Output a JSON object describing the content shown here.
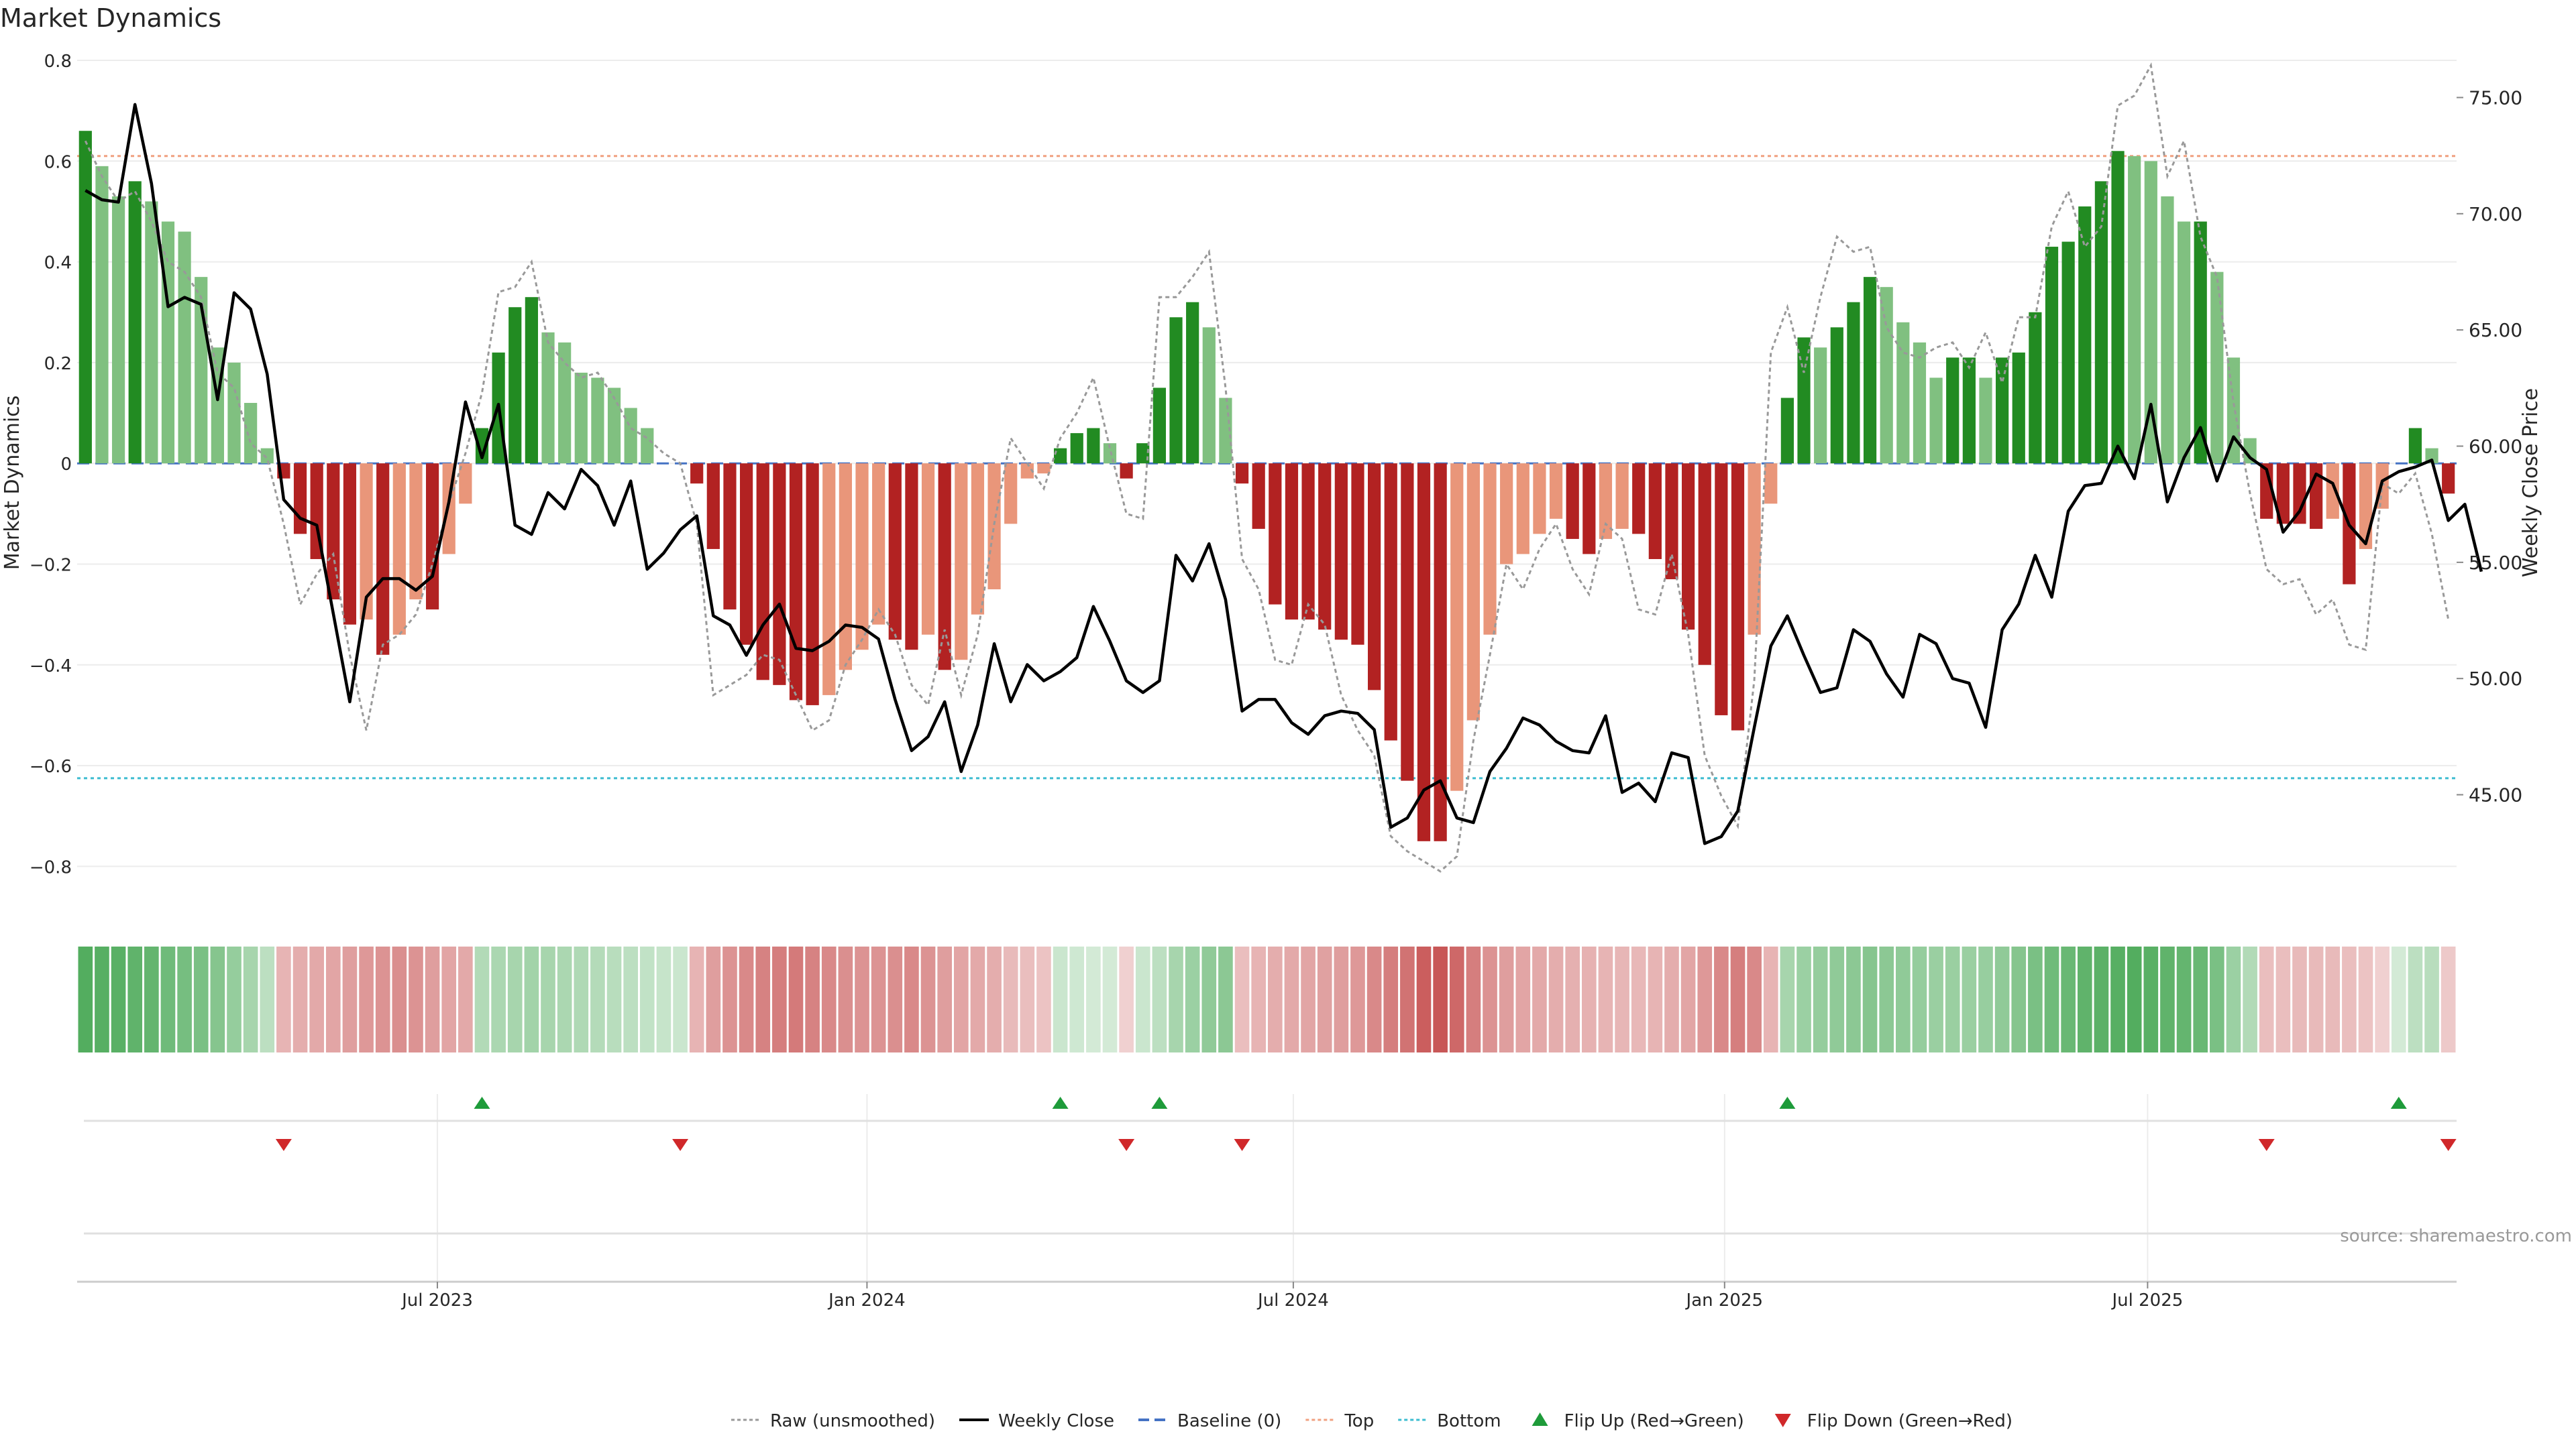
{
  "chart_data": {
    "type": "bar",
    "title": "Market Dynamics",
    "ylabel": "Market Dynamics",
    "y2label": "Weekly Close Price",
    "ylim": [
      -0.87,
      0.8
    ],
    "y2lim": [
      40.4,
      76.6
    ],
    "yticks": [
      "0.8",
      "0.6",
      "0.4",
      "0.2",
      "0",
      "−0.2",
      "−0.4",
      "−0.6",
      "−0.8"
    ],
    "y2ticks": [
      "75.00",
      "70.00",
      "65.00",
      "60.00",
      "55.00",
      "50.00",
      "45.00"
    ],
    "top_level": 0.61,
    "bottom_level": -0.625,
    "baseline": 0,
    "xticks": [
      {
        "week": 21.3,
        "label": "Jul 2023"
      },
      {
        "week": 47.3,
        "label": "Jan 2024"
      },
      {
        "week": 73.1,
        "label": "Jul 2024"
      },
      {
        "week": 99.2,
        "label": "Jan 2025"
      },
      {
        "week": 124.8,
        "label": "Jul 2025"
      }
    ],
    "dynamics": [
      0.66,
      0.59,
      0.53,
      0.56,
      0.52,
      0.48,
      0.46,
      0.37,
      0.23,
      0.2,
      0.12,
      0.03,
      -0.03,
      -0.14,
      -0.19,
      -0.27,
      -0.32,
      -0.31,
      -0.38,
      -0.34,
      -0.27,
      -0.29,
      -0.18,
      -0.08,
      0.07,
      0.22,
      0.31,
      0.33,
      0.26,
      0.24,
      0.18,
      0.17,
      0.15,
      0.11,
      0.07,
      0.0,
      0.0,
      -0.04,
      -0.17,
      -0.29,
      -0.36,
      -0.43,
      -0.44,
      -0.47,
      -0.48,
      -0.46,
      -0.41,
      -0.37,
      -0.32,
      -0.35,
      -0.37,
      -0.34,
      -0.41,
      -0.39,
      -0.3,
      -0.25,
      -0.12,
      -0.03,
      -0.02,
      0.03,
      0.06,
      0.07,
      0.04,
      -0.03,
      0.04,
      0.15,
      0.29,
      0.32,
      0.27,
      0.13,
      -0.04,
      -0.13,
      -0.28,
      -0.31,
      -0.31,
      -0.33,
      -0.35,
      -0.36,
      -0.45,
      -0.55,
      -0.63,
      -0.75,
      -0.75,
      -0.65,
      -0.51,
      -0.34,
      -0.2,
      -0.18,
      -0.14,
      -0.11,
      -0.15,
      -0.18,
      -0.15,
      -0.13,
      -0.14,
      -0.19,
      -0.23,
      -0.33,
      -0.4,
      -0.5,
      -0.53,
      -0.34,
      -0.08,
      0.13,
      0.25,
      0.23,
      0.27,
      0.32,
      0.37,
      0.35,
      0.28,
      0.24,
      0.17,
      0.21,
      0.21,
      0.17,
      0.21,
      0.22,
      0.3,
      0.43,
      0.44,
      0.51,
      0.56,
      0.62,
      0.61,
      0.6,
      0.53,
      0.48,
      0.48,
      0.38,
      0.21,
      0.05,
      -0.11,
      -0.12,
      -0.12,
      -0.13,
      -0.11,
      -0.24,
      -0.17,
      -0.09,
      0.0,
      0.07,
      0.03,
      -0.06
    ],
    "raw": [
      0.64,
      0.57,
      0.52,
      0.54,
      0.48,
      0.4,
      0.38,
      0.33,
      0.18,
      0.15,
      0.04,
      0.01,
      -0.12,
      -0.28,
      -0.22,
      -0.18,
      -0.38,
      -0.53,
      -0.36,
      -0.34,
      -0.3,
      -0.2,
      -0.08,
      0.02,
      0.14,
      0.34,
      0.35,
      0.4,
      0.24,
      0.2,
      0.17,
      0.18,
      0.13,
      0.07,
      0.05,
      0.02,
      0.0,
      -0.12,
      -0.46,
      -0.44,
      -0.42,
      -0.38,
      -0.39,
      -0.46,
      -0.53,
      -0.51,
      -0.4,
      -0.35,
      -0.29,
      -0.34,
      -0.44,
      -0.48,
      -0.33,
      -0.46,
      -0.34,
      -0.12,
      0.05,
      0.0,
      -0.05,
      0.05,
      0.1,
      0.17,
      0.03,
      -0.1,
      -0.11,
      0.33,
      0.33,
      0.37,
      0.42,
      0.15,
      -0.19,
      -0.25,
      -0.39,
      -0.4,
      -0.28,
      -0.32,
      -0.46,
      -0.53,
      -0.58,
      -0.74,
      -0.77,
      -0.79,
      -0.81,
      -0.78,
      -0.55,
      -0.38,
      -0.2,
      -0.25,
      -0.17,
      -0.12,
      -0.21,
      -0.26,
      -0.12,
      -0.15,
      -0.29,
      -0.3,
      -0.18,
      -0.34,
      -0.58,
      -0.66,
      -0.72,
      -0.43,
      0.22,
      0.31,
      0.18,
      0.33,
      0.45,
      0.42,
      0.43,
      0.27,
      0.22,
      0.21,
      0.23,
      0.24,
      0.19,
      0.26,
      0.16,
      0.29,
      0.29,
      0.47,
      0.54,
      0.43,
      0.47,
      0.71,
      0.73,
      0.79,
      0.57,
      0.64,
      0.45,
      0.37,
      0.12,
      -0.06,
      -0.21,
      -0.24,
      -0.23,
      -0.3,
      -0.27,
      -0.36,
      -0.37,
      -0.04,
      -0.06,
      -0.02,
      -0.14,
      -0.31
    ],
    "close": [
      71.0,
      70.6,
      70.5,
      74.7,
      71.3,
      66.0,
      66.4,
      66.1,
      62.0,
      66.6,
      65.9,
      63.1,
      57.7,
      56.9,
      56.6,
      52.8,
      49.0,
      53.5,
      54.3,
      54.3,
      53.8,
      54.4,
      57.6,
      61.9,
      59.5,
      61.8,
      56.6,
      56.2,
      58.0,
      57.3,
      59.0,
      58.3,
      56.6,
      58.5,
      54.7,
      55.4,
      56.4,
      57.0,
      52.7,
      52.3,
      51.0,
      52.3,
      53.2,
      51.3,
      51.2,
      51.6,
      52.3,
      52.2,
      51.7,
      49.1,
      46.9,
      47.5,
      49.0,
      46.0,
      48.0,
      51.5,
      49.0,
      50.6,
      49.9,
      50.3,
      50.9,
      53.1,
      51.6,
      49.9,
      49.4,
      49.9,
      55.3,
      54.2,
      55.8,
      53.4,
      48.6,
      49.1,
      49.1,
      48.1,
      47.6,
      48.4,
      48.6,
      48.5,
      47.8,
      43.6,
      44.0,
      45.2,
      45.6,
      44.0,
      43.8,
      46.0,
      47.0,
      48.3,
      48.0,
      47.3,
      46.9,
      46.8,
      48.4,
      45.1,
      45.5,
      44.7,
      46.8,
      46.6,
      42.9,
      43.2,
      44.3,
      47.9,
      51.4,
      52.7,
      51.0,
      49.4,
      49.6,
      52.1,
      51.6,
      50.2,
      49.2,
      51.9,
      51.5,
      50.0,
      49.8,
      47.9,
      52.1,
      53.2,
      55.3,
      53.5,
      57.2,
      58.3,
      58.4,
      60.0,
      58.6,
      61.8,
      57.6,
      59.5,
      60.8,
      58.5,
      60.4,
      59.5,
      59.0,
      56.3,
      57.2,
      58.8,
      58.4,
      56.6,
      55.8,
      58.5,
      58.9,
      59.1,
      59.4,
      56.8,
      57.5,
      54.6
    ],
    "heat": [
      0.78,
      0.76,
      0.75,
      0.72,
      0.7,
      0.65,
      0.62,
      0.6,
      0.55,
      0.48,
      0.4,
      0.3,
      0.35,
      0.38,
      0.4,
      0.42,
      0.45,
      0.48,
      0.5,
      0.52,
      0.5,
      0.45,
      0.42,
      0.4,
      0.35,
      0.38,
      0.4,
      0.42,
      0.4,
      0.38,
      0.36,
      0.34,
      0.32,
      0.3,
      0.28,
      0.26,
      0.24,
      0.35,
      0.45,
      0.5,
      0.55,
      0.58,
      0.6,
      0.62,
      0.58,
      0.55,
      0.52,
      0.5,
      0.5,
      0.52,
      0.55,
      0.5,
      0.45,
      0.42,
      0.4,
      0.38,
      0.32,
      0.3,
      0.28,
      0.24,
      0.22,
      0.2,
      0.2,
      0.22,
      0.24,
      0.3,
      0.4,
      0.45,
      0.5,
      0.52,
      0.3,
      0.35,
      0.38,
      0.4,
      0.42,
      0.44,
      0.45,
      0.48,
      0.55,
      0.6,
      0.65,
      0.75,
      0.78,
      0.7,
      0.6,
      0.5,
      0.45,
      0.42,
      0.4,
      0.38,
      0.37,
      0.36,
      0.35,
      0.34,
      0.33,
      0.35,
      0.38,
      0.42,
      0.48,
      0.55,
      0.6,
      0.55,
      0.35,
      0.4,
      0.45,
      0.48,
      0.5,
      0.52,
      0.55,
      0.52,
      0.5,
      0.48,
      0.46,
      0.46,
      0.46,
      0.47,
      0.5,
      0.55,
      0.6,
      0.65,
      0.68,
      0.72,
      0.74,
      0.76,
      0.78,
      0.75,
      0.72,
      0.7,
      0.68,
      0.6,
      0.45,
      0.35,
      0.3,
      0.3,
      0.32,
      0.32,
      0.32,
      0.3,
      0.28,
      0.22,
      0.2,
      0.3,
      0.32,
      0.25
    ],
    "flip_up": [
      24,
      59,
      65,
      103,
      140
    ],
    "flip_down": [
      12,
      36,
      63,
      70,
      132,
      143
    ],
    "source": "source: sharemaestro.com",
    "legend": [
      {
        "label": "Raw (unsmoothed)",
        "kind": "dotted-line",
        "color": "#999999"
      },
      {
        "label": "Weekly Close",
        "kind": "line",
        "color": "#000000"
      },
      {
        "label": "Baseline (0)",
        "kind": "dashed-line",
        "color": "#4472c4"
      },
      {
        "label": "Top",
        "kind": "dotted-line",
        "color": "#f0a080"
      },
      {
        "label": "Bottom",
        "kind": "dotted-line",
        "color": "#3cbcd0"
      },
      {
        "label": "Flip Up (Red→Green)",
        "kind": "triangle-up",
        "color": "#1e9b3a"
      },
      {
        "label": "Flip Down (Green→Red)",
        "kind": "triangle-down",
        "color": "#d0282a"
      }
    ],
    "colors": {
      "green_dark": "#228b22",
      "green_light": "#80c080",
      "red_dark": "#b22222",
      "red_light": "#e9967a",
      "top": "#f0a080",
      "bottom": "#3cbcd0",
      "baseline": "#4472c4"
    }
  }
}
